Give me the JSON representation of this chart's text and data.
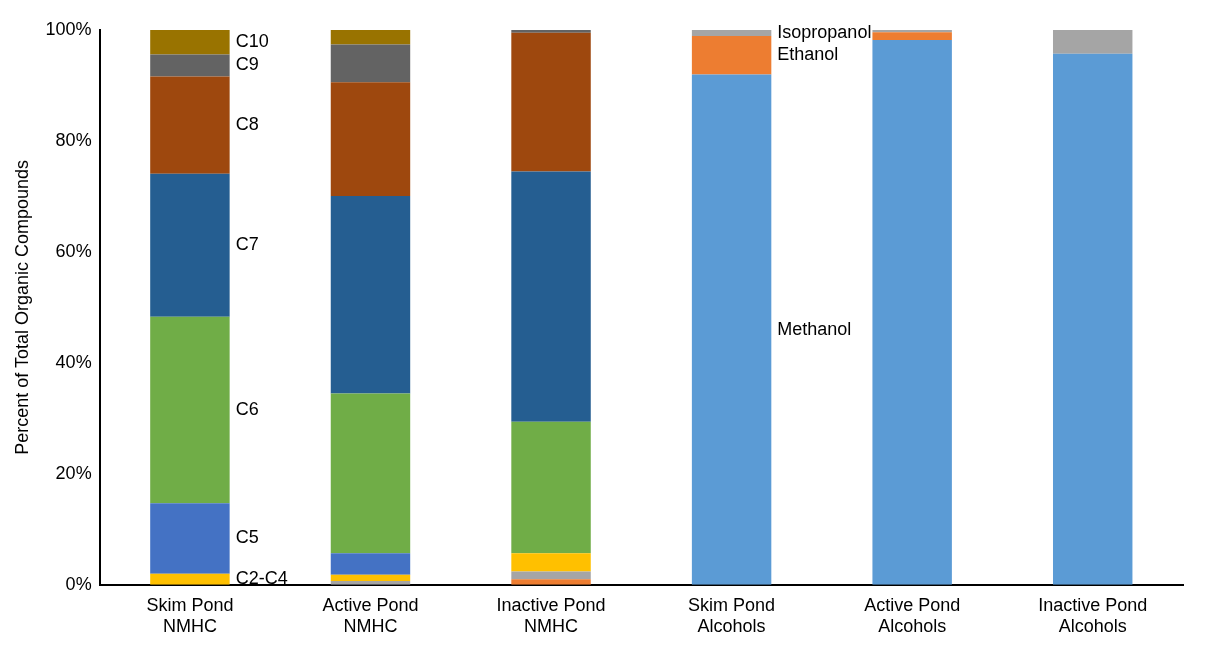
{
  "chart_data": {
    "type": "bar",
    "stacked": true,
    "ylabel": "Percent of Total Organic Compounds",
    "categories": [
      "Skim Pond NMHC",
      "Active Pond NMHC",
      "Inactive Pond NMHC",
      "Skim Pond Alcohols",
      "Active Pond Alcohols",
      "Inactive Pond Alcohols"
    ],
    "ylim": [
      0,
      100
    ],
    "yticks": [
      {
        "value": 0,
        "label": "0%"
      },
      {
        "value": 20,
        "label": "20%"
      },
      {
        "value": 40,
        "label": "40%"
      },
      {
        "value": 60,
        "label": "60%"
      },
      {
        "value": 80,
        "label": "80%"
      },
      {
        "value": 100,
        "label": "100%"
      }
    ],
    "grid": false,
    "legend": false,
    "series": [
      {
        "name": "Methanol",
        "color": "#5b9bd5",
        "values": [
          0,
          0,
          0,
          92.0,
          98.2,
          95.7
        ]
      },
      {
        "name": "Ethanol",
        "color": "#ed7d31",
        "values": [
          0,
          0,
          1.0,
          6.9,
          1.4,
          0
        ]
      },
      {
        "name": "Isopropanol",
        "color": "#a5a5a5",
        "values": [
          0,
          0.7,
          1.4,
          1.1,
          0.4,
          4.3
        ]
      },
      {
        "name": "C2-C4",
        "color": "#ffc000",
        "values": [
          2.0,
          1.1,
          3.3,
          0,
          0,
          0
        ]
      },
      {
        "name": "C5",
        "color": "#4472c4",
        "values": [
          12.7,
          3.9,
          0,
          0,
          0,
          0
        ]
      },
      {
        "name": "C6",
        "color": "#70ad47",
        "values": [
          33.6,
          28.8,
          23.7,
          0,
          0,
          0
        ]
      },
      {
        "name": "C7",
        "color": "#255e91",
        "values": [
          25.8,
          35.6,
          45.1,
          0,
          0,
          0
        ]
      },
      {
        "name": "C8",
        "color": "#9e480e",
        "values": [
          17.5,
          20.5,
          25.0,
          0,
          0,
          0
        ]
      },
      {
        "name": "C9",
        "color": "#636363",
        "values": [
          4.0,
          6.8,
          0.5,
          0,
          0,
          0
        ]
      },
      {
        "name": "C10",
        "color": "#997300",
        "values": [
          4.4,
          2.6,
          0,
          0,
          0,
          0
        ]
      }
    ]
  }
}
